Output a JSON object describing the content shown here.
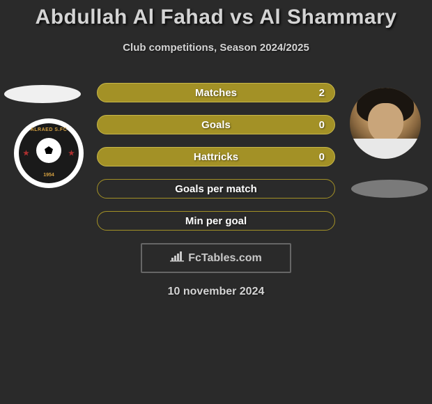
{
  "title": "Abdullah Al Fahad vs Al Shammary",
  "subtitle": "Club competitions, Season 2024/2025",
  "date": "10 november 2024",
  "watermark": "FcTables.com",
  "colors": {
    "bar_fill": "#a39126",
    "bar_border_light": "#c8b84a",
    "bar_empty_border": "#a39126",
    "bar_empty_bg": "transparent"
  },
  "stats": [
    {
      "label": "Matches",
      "value": "2",
      "filled": true
    },
    {
      "label": "Goals",
      "value": "0",
      "filled": true
    },
    {
      "label": "Hattricks",
      "value": "0",
      "filled": true
    },
    {
      "label": "Goals per match",
      "value": "",
      "filled": false
    },
    {
      "label": "Min per goal",
      "value": "",
      "filled": false
    }
  ],
  "left_badge": {
    "top_text": "ALRAED S.FC",
    "bottom_text": "1954"
  }
}
